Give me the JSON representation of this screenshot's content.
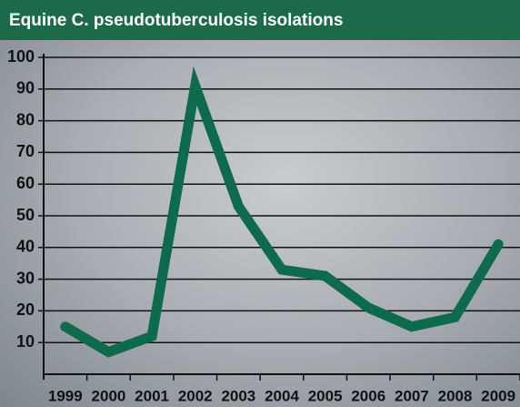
{
  "chart_data": {
    "type": "line",
    "title": "Equine C. pseudotuberculosis isolations",
    "categories": [
      "1999",
      "2000",
      "2001",
      "2002",
      "2003",
      "2004",
      "2005",
      "2006",
      "2007",
      "2008",
      "2009"
    ],
    "series": [
      {
        "color": "#0e6a4c",
        "values": [
          15,
          7,
          12,
          91,
          53,
          33,
          31,
          21,
          15,
          18,
          41
        ]
      }
    ],
    "ylim": [
      0,
      100
    ],
    "yticks": [
      10,
      20,
      30,
      40,
      50,
      60,
      70,
      80,
      90,
      100
    ],
    "grid": true
  }
}
